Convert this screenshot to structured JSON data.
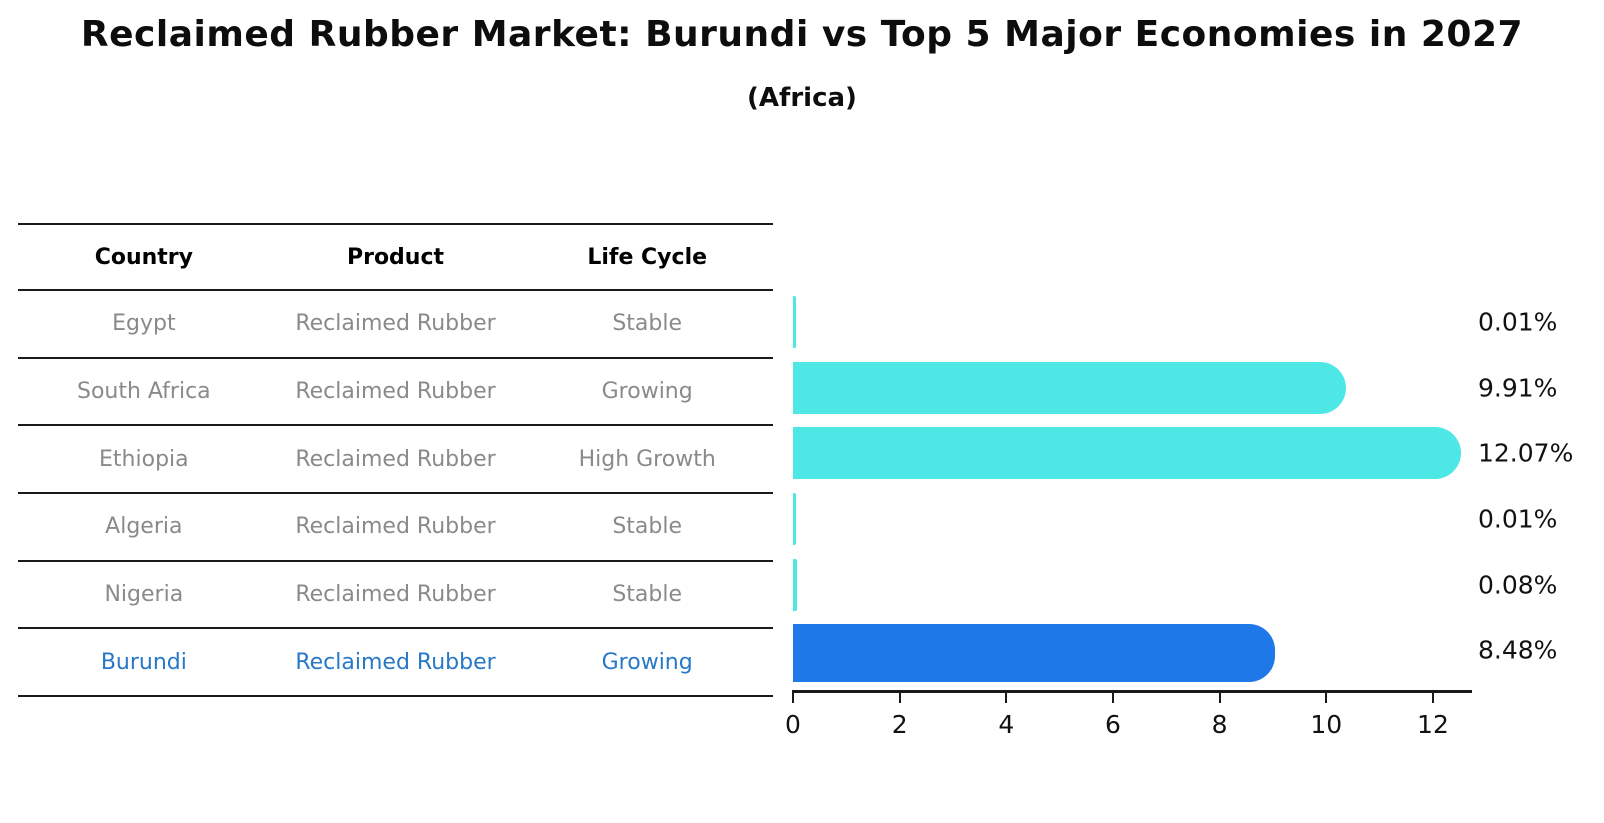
{
  "title": "Reclaimed Rubber Market: Burundi vs Top 5 Major Economies in 2027",
  "subtitle": "(Africa)",
  "table": {
    "headers": [
      "Country",
      "Product",
      "Life Cycle"
    ],
    "rows": [
      {
        "country": "Egypt",
        "product": "Reclaimed Rubber",
        "life_cycle": "Stable",
        "highlight": false
      },
      {
        "country": "South Africa",
        "product": "Reclaimed Rubber",
        "life_cycle": "Growing",
        "highlight": false
      },
      {
        "country": "Ethiopia",
        "product": "Reclaimed Rubber",
        "life_cycle": "High Growth",
        "highlight": false
      },
      {
        "country": "Algeria",
        "product": "Reclaimed Rubber",
        "life_cycle": "Stable",
        "highlight": false
      },
      {
        "country": "Nigeria",
        "product": "Reclaimed Rubber",
        "life_cycle": "Stable",
        "highlight": false
      },
      {
        "country": "Burundi",
        "product": "Reclaimed Rubber",
        "life_cycle": "Growing",
        "highlight": true
      }
    ]
  },
  "chart_data": {
    "type": "bar",
    "orientation": "horizontal",
    "title": "Reclaimed Rubber Market: Burundi vs Top 5 Major Economies in 2027 (Africa)",
    "categories": [
      "Egypt",
      "South Africa",
      "Ethiopia",
      "Algeria",
      "Nigeria",
      "Burundi"
    ],
    "values": [
      0.01,
      9.91,
      12.07,
      0.01,
      0.08,
      8.48
    ],
    "value_labels": [
      "0.01%",
      "9.91%",
      "12.07%",
      "0.01%",
      "0.08%",
      "8.48%"
    ],
    "value_unit": "%",
    "highlight_category": "Burundi",
    "xlabel": "",
    "ylabel": "",
    "xticks": [
      0,
      2,
      4,
      6,
      8,
      10,
      12
    ],
    "xlim": [
      0,
      12.75
    ],
    "grid": false,
    "legend": false,
    "colors": {
      "bar_default": "#4DE8E6",
      "bar_highlight": "#1E78E8",
      "highlight_text": "#2878C8",
      "row_text": "#8A8A8A",
      "header_text": "#000000",
      "axis": "#1A1A1A"
    }
  }
}
